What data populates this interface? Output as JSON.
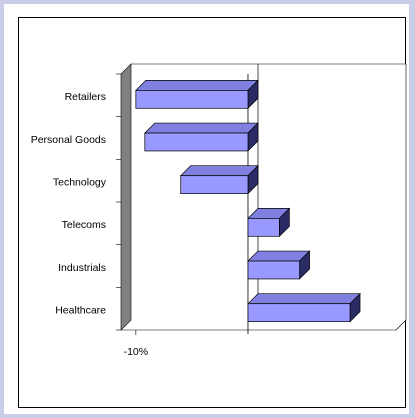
{
  "chart_data": {
    "type": "bar",
    "orientation": "horizontal",
    "title": "",
    "xlabel": "",
    "ylabel": "",
    "categories": [
      "Retailers",
      "Personal Goods",
      "Technology",
      "Telecoms",
      "Industrials",
      "Healthcare"
    ],
    "values": [
      -10.0,
      -9.2,
      -6.0,
      2.8,
      4.6,
      9.1
    ],
    "xlim": [
      -10.7,
      13.2
    ],
    "x_tick_labels": [
      {
        "value": -10.0,
        "label": "-10%"
      }
    ],
    "grid": false,
    "legend": "none",
    "colors": {
      "bar_front": "#9999ff",
      "bar_top": "#8080e0",
      "bar_side": "#2b2b66",
      "wall": "#808080",
      "frame": "#c9cde8"
    }
  }
}
